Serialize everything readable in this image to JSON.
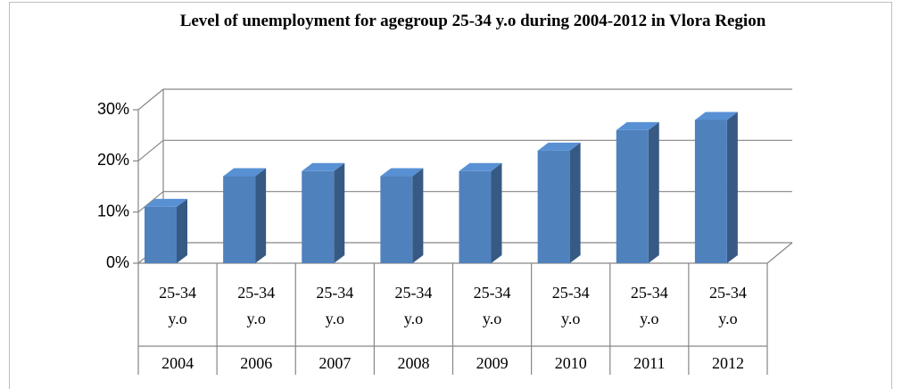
{
  "chart_data": {
    "type": "bar",
    "title": "Level of unemployment for agegroup 25-34 y.o during 2004-2012 in Vlora Region",
    "categories": [
      "2004",
      "2006",
      "2007",
      "2008",
      "2009",
      "2010",
      "2011",
      "2012"
    ],
    "group_labels": [
      "25-34 y.o",
      "25-34 y.o",
      "25-34 y.o",
      "25-34 y.o",
      "25-34 y.o",
      "25-34 y.o",
      "25-34 y.o",
      "25-34 y.o"
    ],
    "values": [
      11,
      17,
      18,
      17,
      18,
      22,
      26,
      28
    ],
    "color": "#4f81bd",
    "ylim": [
      0,
      30
    ],
    "yticks": [
      {
        "value": 0,
        "label": "0%"
      },
      {
        "value": 10,
        "label": "10%"
      },
      {
        "value": 20,
        "label": "20%"
      },
      {
        "value": 30,
        "label": "30%"
      }
    ],
    "grid": true
  }
}
